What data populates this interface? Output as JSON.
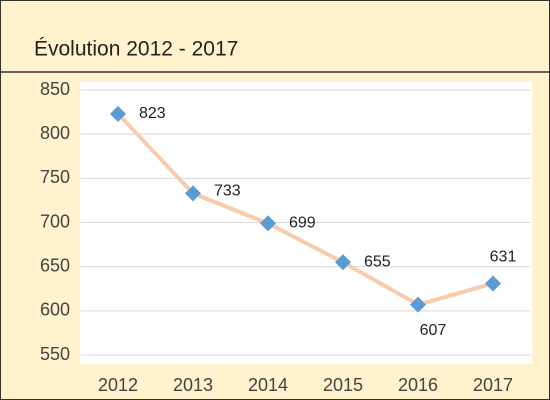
{
  "chart_data": {
    "type": "line",
    "title": "Évolution 2012 - 2017",
    "categories": [
      "2012",
      "2013",
      "2014",
      "2015",
      "2016",
      "2017"
    ],
    "values": [
      823,
      733,
      699,
      655,
      607,
      631
    ],
    "line_color": "#f8cbad",
    "marker_color": "#5b9bd5",
    "ylim": [
      550,
      850
    ],
    "yticks": [
      550,
      600,
      650,
      700,
      750,
      800,
      850
    ],
    "grid": true
  }
}
